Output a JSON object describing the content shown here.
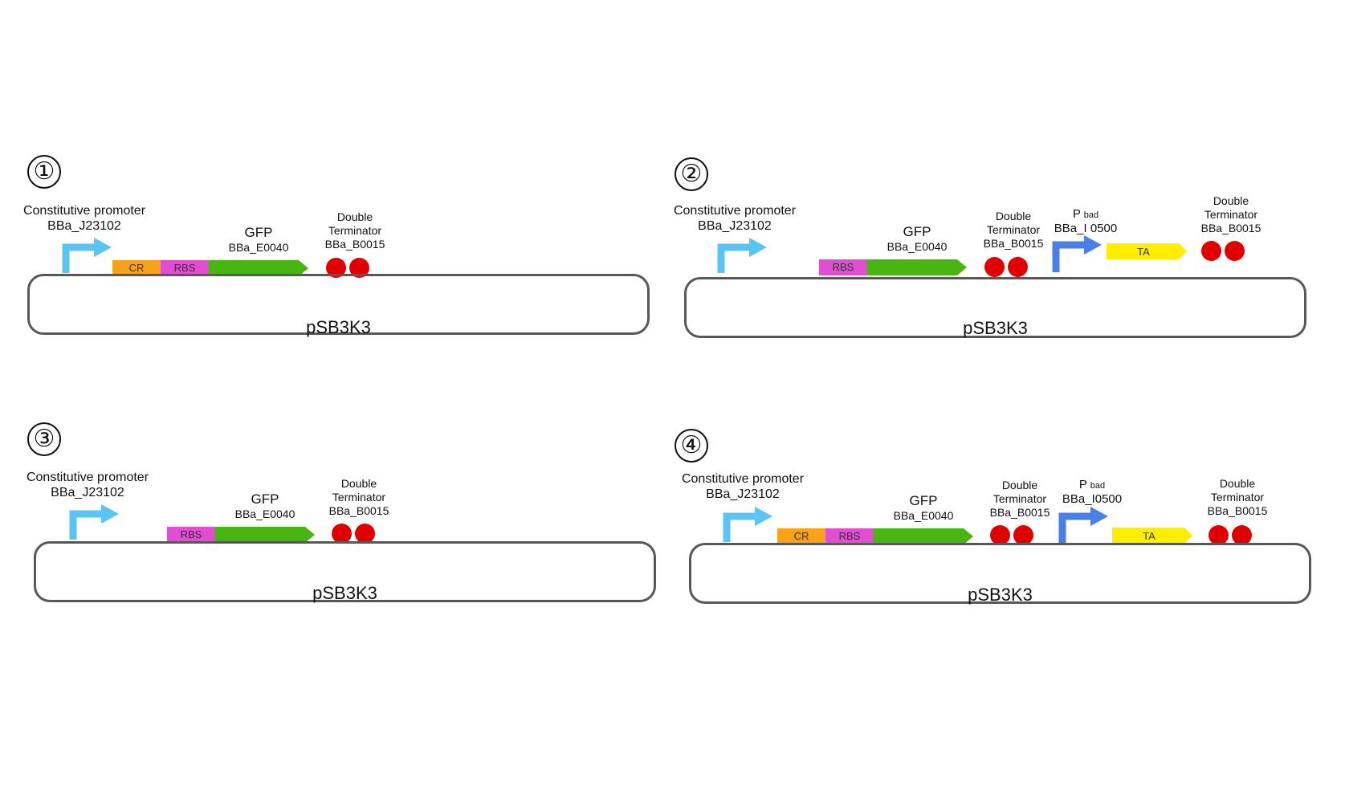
{
  "colors": {
    "constitutive_arrow": "#5bc4f5",
    "pbad_arrow": "#4a7fe8",
    "cr": "#f7a21b",
    "rbs": "#e04fd0",
    "gfp": "#48b512",
    "ta": "#ffee00",
    "terminator": "#e00000",
    "plasmid_outline": "#585858"
  },
  "panels": [
    {
      "number": "①",
      "promoter": {
        "name": "Constitutive promoter",
        "code": "BBa_J23102"
      },
      "cr": "CR",
      "rbs": "RBS",
      "gfp": {
        "name": "GFP",
        "code": "BBa_E0040"
      },
      "terminator1": {
        "line1": "Double",
        "line2": "Terminator",
        "line3": "BBa_B0015"
      },
      "plasmid": "pSB3K3"
    },
    {
      "number": "②",
      "promoter": {
        "name": "Constitutive promoter",
        "code": "BBa_J23102"
      },
      "rbs": "RBS",
      "gfp": {
        "name": "GFP",
        "code": "BBa_E0040"
      },
      "terminator1": {
        "line1": "Double",
        "line2": "Terminator",
        "line3": "BBa_B0015"
      },
      "pbad": {
        "p": "P",
        "sub": "bad",
        "code": "BBa_I 0500"
      },
      "ta": "TA",
      "terminator2": {
        "line1": "Double",
        "line2": "Terminator",
        "line3": "BBa_B0015"
      },
      "plasmid": "pSB3K3"
    },
    {
      "number": "③",
      "promoter": {
        "name": "Constitutive promoter",
        "code": "BBa_J23102"
      },
      "rbs": "RBS",
      "gfp": {
        "name": "GFP",
        "code": "BBa_E0040"
      },
      "terminator1": {
        "line1": "Double",
        "line2": "Terminator",
        "line3": "BBa_B0015"
      },
      "plasmid": "pSB3K3"
    },
    {
      "number": "④",
      "promoter": {
        "name": "Constitutive promoter",
        "code": "BBa_J23102"
      },
      "cr": "CR",
      "rbs": "RBS",
      "gfp": {
        "name": "GFP",
        "code": "BBa_E0040"
      },
      "terminator1": {
        "line1": "Double",
        "line2": "Terminator",
        "line3": "BBa_B0015"
      },
      "pbad": {
        "p": "P",
        "sub": "bad",
        "code": "BBa_I0500"
      },
      "ta": "TA",
      "terminator2": {
        "line1": "Double",
        "line2": "Terminator",
        "line3": "BBa_B0015"
      },
      "plasmid": "pSB3K3"
    }
  ]
}
